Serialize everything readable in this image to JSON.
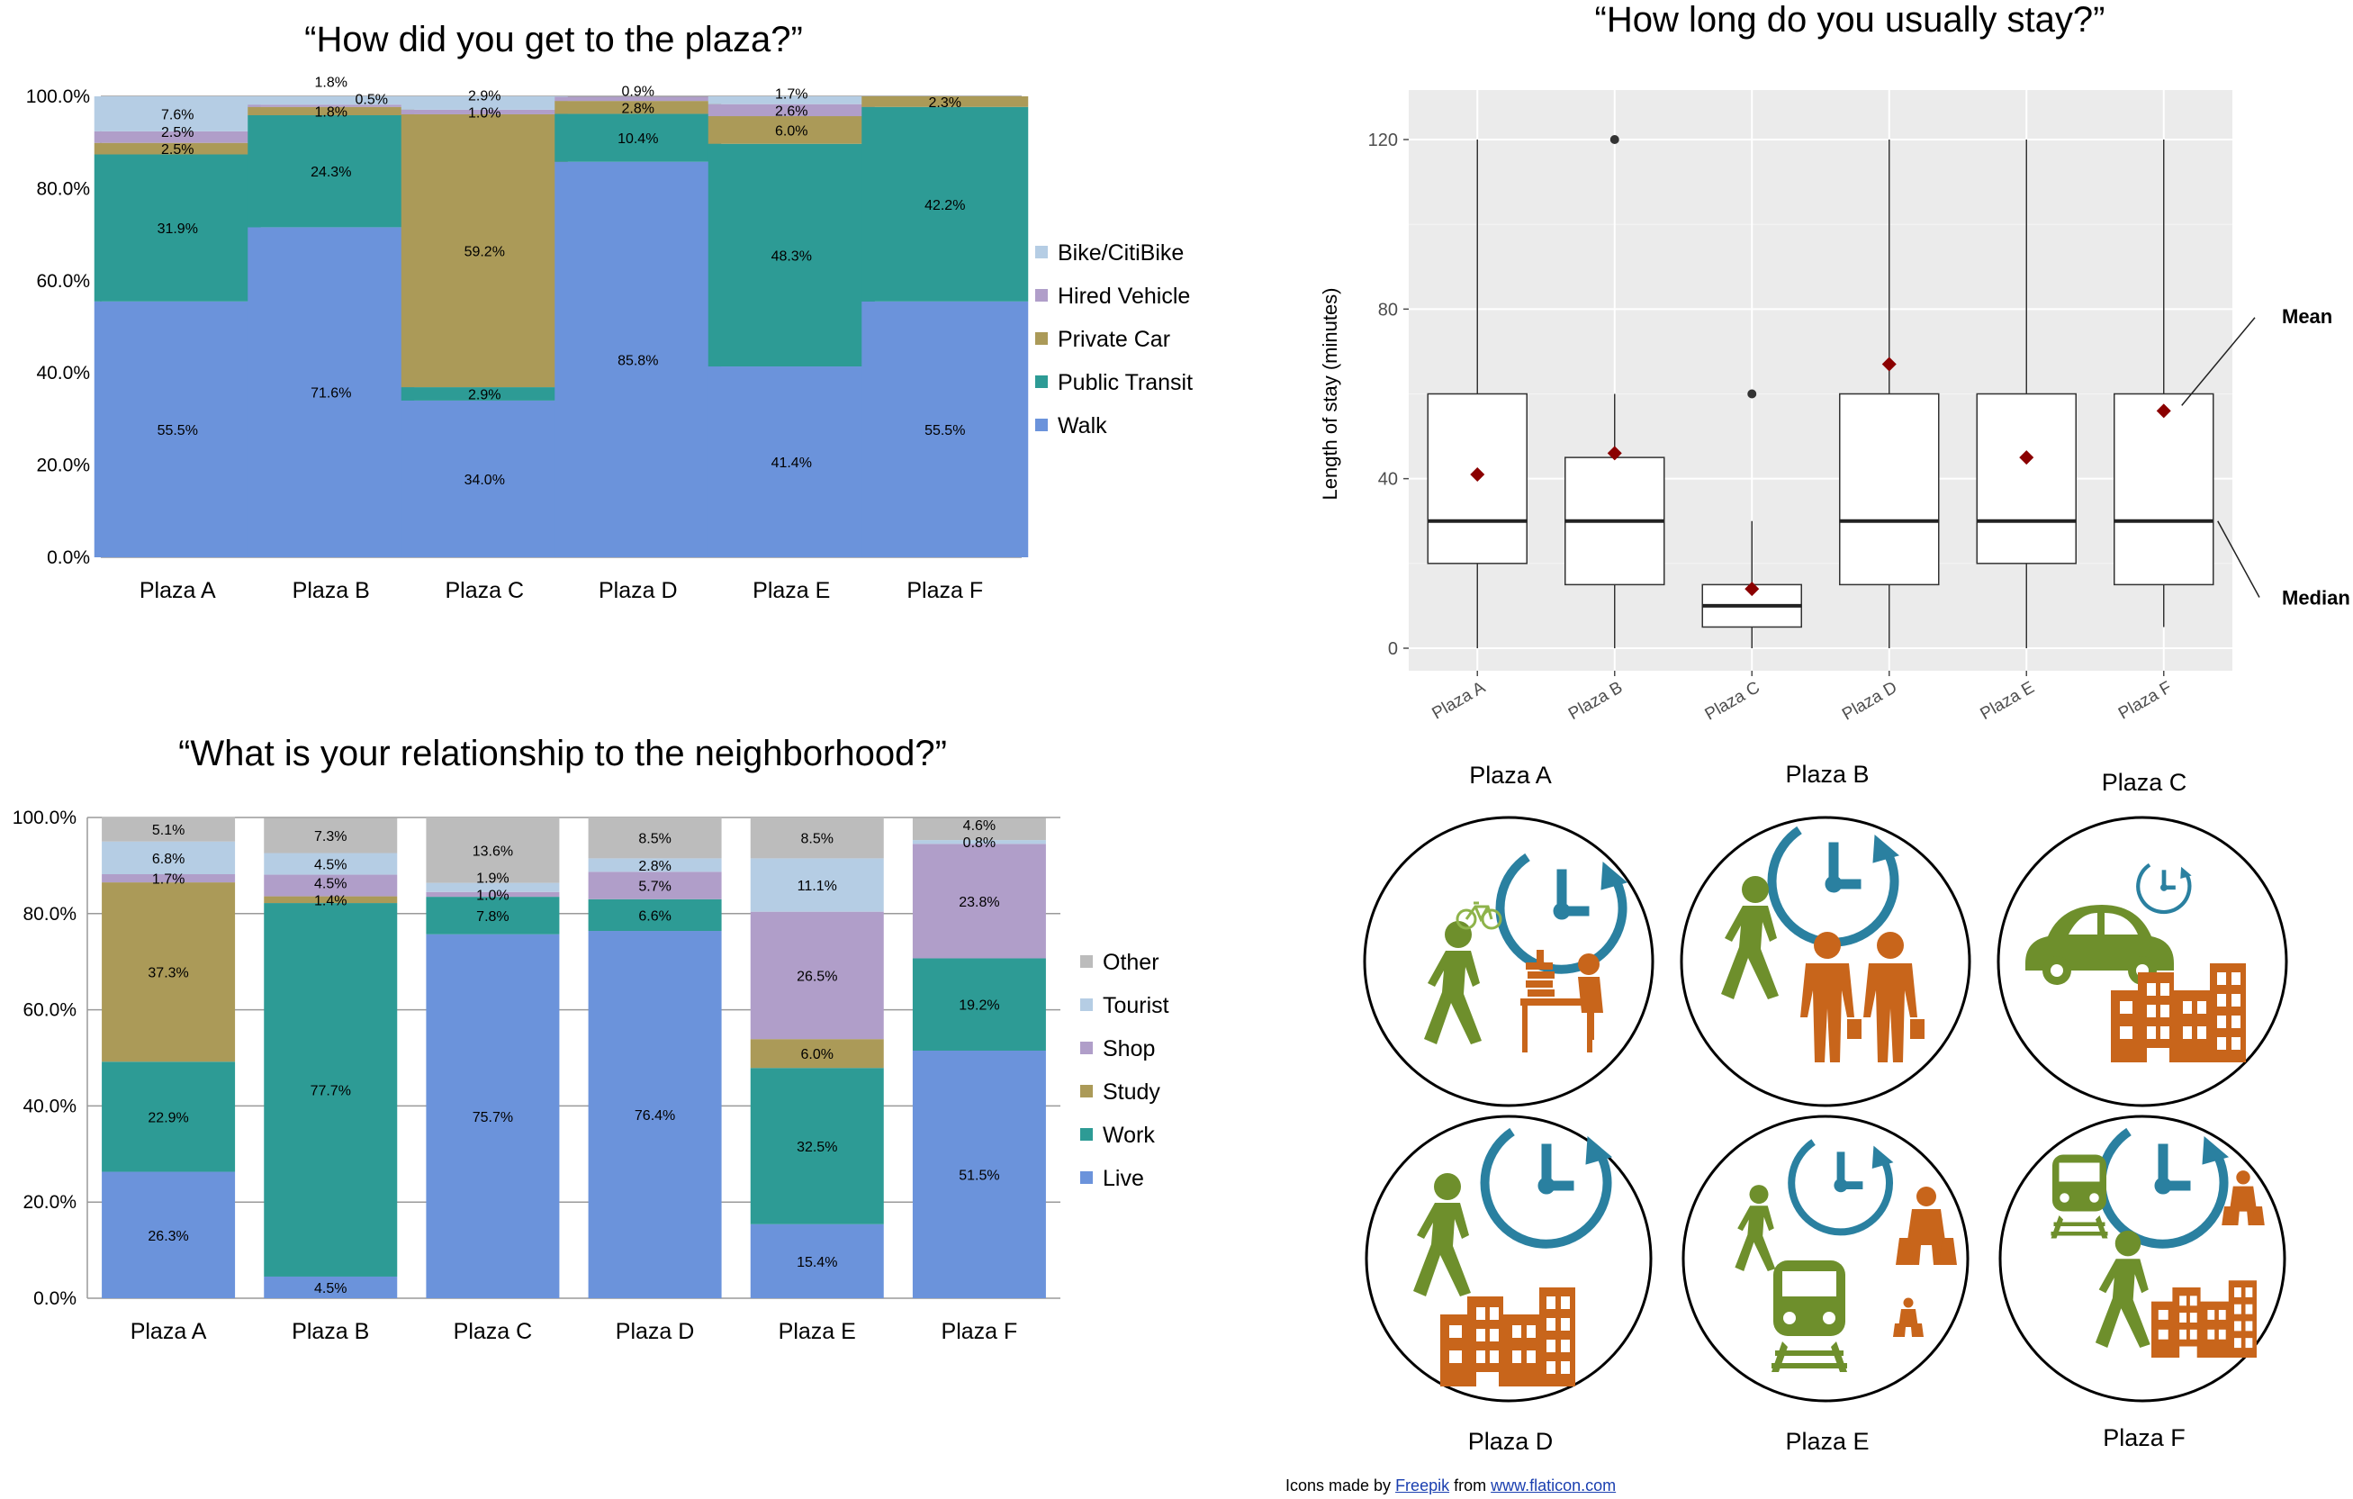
{
  "colors": {
    "walk": "#6b93db",
    "transit": "#2d9b95",
    "car": "#ab9a58",
    "hired": "#b09ec9",
    "bike": "#b5cde4",
    "other": "#bcbcbc",
    "grid": "#9a9a9a",
    "box_panel": "#ebebeb",
    "mean_marker": "#8b0000",
    "icon_green": "#6e8f2c",
    "icon_blue": "#2a80a0",
    "icon_orange": "#c8651b"
  },
  "chart_data": [
    {
      "type": "bar",
      "stacked": true,
      "title": "“How did you get to the plaza?”",
      "categories": [
        "Plaza A",
        "Plaza B",
        "Plaza C",
        "Plaza D",
        "Plaza E",
        "Plaza F"
      ],
      "yticks": [
        "0.0%",
        "20.0%",
        "40.0%",
        "60.0%",
        "80.0%",
        "100.0%"
      ],
      "ylim": [
        0,
        100
      ],
      "legend_position": "right",
      "series": [
        {
          "name": "Walk",
          "color_key": "walk",
          "values": [
            55.5,
            71.6,
            34.0,
            85.8,
            41.4,
            55.5
          ],
          "labels": [
            "55.5%",
            "71.6%",
            "34.0%",
            "85.8%",
            "41.4%",
            "55.5%"
          ]
        },
        {
          "name": "Public Transit",
          "color_key": "transit",
          "values": [
            31.9,
            24.3,
            2.9,
            10.4,
            48.3,
            42.2
          ],
          "labels": [
            "31.9%",
            "24.3%",
            "2.9%",
            "10.4%",
            "48.3%",
            "42.2%"
          ]
        },
        {
          "name": "Private Car",
          "color_key": "car",
          "values": [
            2.5,
            1.8,
            59.2,
            2.8,
            6.0,
            2.3
          ],
          "labels": [
            "2.5%",
            "1.8%",
            "59.2%",
            "2.8%",
            "6.0%",
            "2.3%"
          ]
        },
        {
          "name": "Hired Vehicle",
          "color_key": "hired",
          "values": [
            2.5,
            0.5,
            1.0,
            0.9,
            2.6,
            0.0
          ],
          "labels": [
            "2.5%",
            "0.5%",
            "1.0%",
            "0.9%",
            "2.6%",
            ""
          ]
        },
        {
          "name": "Bike/CitiBike",
          "color_key": "bike",
          "values": [
            7.6,
            1.8,
            2.9,
            0.0,
            1.7,
            0.0
          ],
          "labels": [
            "7.6%",
            "1.8%",
            "2.9%",
            "",
            "1.7%",
            ""
          ]
        }
      ]
    },
    {
      "type": "bar",
      "stacked": true,
      "title": "“What is your relationship to the neighborhood?”",
      "categories": [
        "Plaza A",
        "Plaza B",
        "Plaza C",
        "Plaza D",
        "Plaza E",
        "Plaza F"
      ],
      "yticks": [
        "0.0%",
        "20.0%",
        "40.0%",
        "60.0%",
        "80.0%",
        "100.0%"
      ],
      "ylim": [
        0,
        100
      ],
      "legend_position": "right",
      "series": [
        {
          "name": "Live",
          "color_key": "walk",
          "values": [
            26.3,
            4.5,
            75.7,
            76.4,
            15.4,
            51.5
          ],
          "labels": [
            "26.3%",
            "4.5%",
            "75.7%",
            "76.4%",
            "15.4%",
            "51.5%"
          ]
        },
        {
          "name": "Work",
          "color_key": "transit",
          "values": [
            22.9,
            77.7,
            7.8,
            6.6,
            32.5,
            19.2
          ],
          "labels": [
            "22.9%",
            "77.7%",
            "7.8%",
            "6.6%",
            "32.5%",
            "19.2%"
          ]
        },
        {
          "name": "Study",
          "color_key": "car",
          "values": [
            37.3,
            1.4,
            0.0,
            0.0,
            6.0,
            0.0
          ],
          "labels": [
            "37.3%",
            "1.4%",
            "",
            "",
            "6.0%",
            ""
          ]
        },
        {
          "name": "Shop",
          "color_key": "hired",
          "values": [
            1.7,
            4.5,
            1.0,
            5.7,
            26.5,
            23.8
          ],
          "labels": [
            "1.7%",
            "4.5%",
            "1.0%",
            "5.7%",
            "26.5%",
            "23.8%"
          ]
        },
        {
          "name": "Tourist",
          "color_key": "bike",
          "values": [
            6.8,
            4.5,
            1.9,
            2.8,
            11.1,
            0.8
          ],
          "labels": [
            "6.8%",
            "4.5%",
            "1.9%",
            "2.8%",
            "11.1%",
            "0.8%"
          ]
        },
        {
          "name": "Other",
          "color_key": "other",
          "values": [
            5.1,
            7.3,
            13.6,
            8.5,
            8.5,
            4.6
          ],
          "labels": [
            "5.1%",
            "7.3%",
            "13.6%",
            "8.5%",
            "8.5%",
            "4.6%"
          ]
        }
      ]
    },
    {
      "type": "box",
      "title": "“How long do you usually stay?”",
      "ylabel": "Length of stay (minutes)",
      "ylim": [
        -4,
        124
      ],
      "yticks": [
        0,
        40,
        80,
        120
      ],
      "categories": [
        "Plaza A",
        "Plaza B",
        "Plaza C",
        "Plaza D",
        "Plaza E",
        "Plaza F"
      ],
      "boxes": [
        {
          "min": 0,
          "q1": 20,
          "median": 30,
          "q3": 60,
          "max": 120,
          "mean": 41,
          "outliers": []
        },
        {
          "min": 0,
          "q1": 15,
          "median": 30,
          "q3": 45,
          "max": 60,
          "mean": 46,
          "outliers": [
            120
          ]
        },
        {
          "min": 0,
          "q1": 5,
          "median": 10,
          "q3": 15,
          "max": 30,
          "mean": 14,
          "outliers": [
            60
          ]
        },
        {
          "min": 0,
          "q1": 15,
          "median": 30,
          "q3": 60,
          "max": 120,
          "mean": 67,
          "outliers": []
        },
        {
          "min": 0,
          "q1": 20,
          "median": 30,
          "q3": 60,
          "max": 120,
          "mean": 45,
          "outliers": []
        },
        {
          "min": 5,
          "q1": 15,
          "median": 30,
          "q3": 60,
          "max": 120,
          "mean": 56,
          "outliers": []
        }
      ],
      "annotations": [
        "Mean",
        "Median"
      ]
    }
  ],
  "plazas": [
    {
      "name": "Plaza A",
      "icons": [
        "walking-person-icon",
        "student-at-desk-icon",
        "bicycle-icon",
        "clock-icon"
      ]
    },
    {
      "name": "Plaza B",
      "icons": [
        "walking-person-icon",
        "business-people-icon",
        "clock-icon"
      ]
    },
    {
      "name": "Plaza C",
      "icons": [
        "car-icon",
        "building-icon",
        "clock-icon"
      ]
    },
    {
      "name": "Plaza D",
      "icons": [
        "walking-person-icon",
        "building-icon",
        "clock-icon"
      ]
    },
    {
      "name": "Plaza E",
      "icons": [
        "walking-person-icon",
        "train-icon",
        "shopper-icon",
        "clock-icon"
      ]
    },
    {
      "name": "Plaza F",
      "icons": [
        "train-icon",
        "walking-person-icon",
        "building-icon",
        "shopper-icon",
        "clock-icon"
      ]
    }
  ],
  "credit": {
    "prefix": "Icons made by ",
    "author": "Freepik",
    "middle": " from ",
    "site": "www.flaticon.com"
  }
}
